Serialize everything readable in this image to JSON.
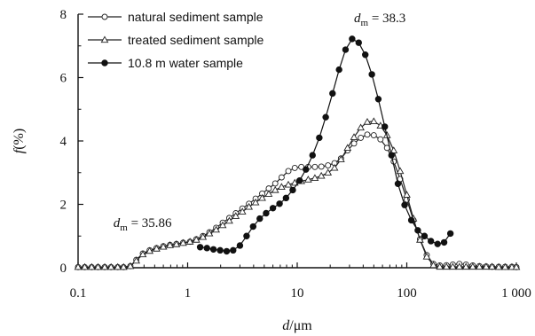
{
  "chart_data": {
    "type": "line",
    "xscale": "log",
    "xlim": [
      0.1,
      1000
    ],
    "ylim": [
      0,
      8
    ],
    "xlabel": {
      "var": "d",
      "unit": "μm"
    },
    "ylabel": {
      "var": "f",
      "unit": "(%)"
    },
    "xticks": [
      {
        "value": 0.1,
        "label": "0.1"
      },
      {
        "value": 1,
        "label": "1"
      },
      {
        "value": 10,
        "label": "10"
      },
      {
        "value": 100,
        "label": "100"
      },
      {
        "value": 1000,
        "label": "1 000"
      }
    ],
    "yticks": [
      {
        "value": 0,
        "label": "0"
      },
      {
        "value": 2,
        "label": "2"
      },
      {
        "value": 4,
        "label": "4"
      },
      {
        "value": 6,
        "label": "6"
      },
      {
        "value": 8,
        "label": "8"
      }
    ],
    "legend_position": "top-left",
    "grid": false,
    "annotations": [
      {
        "prefix": "d",
        "sub": "m",
        "text": " = 38.3",
        "x": 33,
        "y": 7.75
      },
      {
        "prefix": "d",
        "sub": "m",
        "text": " = 35.86",
        "x": 0.21,
        "y": 1.28
      }
    ],
    "series": [
      {
        "name": "natural sediment sample",
        "marker": "open-circle",
        "color": "#222222",
        "points": [
          [
            0.1,
            0.02
          ],
          [
            0.115,
            0.02
          ],
          [
            0.133,
            0.02
          ],
          [
            0.152,
            0.02
          ],
          [
            0.175,
            0.02
          ],
          [
            0.2,
            0.02
          ],
          [
            0.23,
            0.02
          ],
          [
            0.26,
            0.02
          ],
          [
            0.3,
            0.05
          ],
          [
            0.34,
            0.25
          ],
          [
            0.39,
            0.45
          ],
          [
            0.45,
            0.55
          ],
          [
            0.52,
            0.62
          ],
          [
            0.6,
            0.68
          ],
          [
            0.69,
            0.72
          ],
          [
            0.79,
            0.75
          ],
          [
            0.91,
            0.79
          ],
          [
            1.05,
            0.82
          ],
          [
            1.2,
            0.9
          ],
          [
            1.38,
            1.0
          ],
          [
            1.58,
            1.12
          ],
          [
            1.82,
            1.26
          ],
          [
            2.09,
            1.42
          ],
          [
            2.4,
            1.57
          ],
          [
            2.75,
            1.72
          ],
          [
            3.16,
            1.87
          ],
          [
            3.63,
            2.02
          ],
          [
            4.17,
            2.18
          ],
          [
            4.79,
            2.34
          ],
          [
            5.5,
            2.5
          ],
          [
            6.3,
            2.66
          ],
          [
            7.2,
            2.85
          ],
          [
            8.3,
            3.05
          ],
          [
            9.5,
            3.15
          ],
          [
            10.9,
            3.18
          ],
          [
            12.6,
            3.18
          ],
          [
            14.5,
            3.18
          ],
          [
            16.6,
            3.19
          ],
          [
            19.1,
            3.23
          ],
          [
            21.9,
            3.3
          ],
          [
            25.1,
            3.45
          ],
          [
            28.8,
            3.7
          ],
          [
            33,
            3.92
          ],
          [
            38,
            4.1
          ],
          [
            43.6,
            4.2
          ],
          [
            50,
            4.18
          ],
          [
            57.5,
            4.05
          ],
          [
            66,
            3.78
          ],
          [
            76,
            3.35
          ],
          [
            87,
            2.8
          ],
          [
            100,
            2.15
          ],
          [
            115,
            1.5
          ],
          [
            132,
            0.9
          ],
          [
            152,
            0.4
          ],
          [
            175,
            0.12
          ],
          [
            200,
            0.07
          ],
          [
            230,
            0.08
          ],
          [
            263,
            0.1
          ],
          [
            302,
            0.12
          ],
          [
            347,
            0.1
          ],
          [
            400,
            0.07
          ],
          [
            460,
            0.05
          ],
          [
            530,
            0.04
          ],
          [
            600,
            0.03
          ],
          [
            690,
            0.03
          ],
          [
            790,
            0.03
          ],
          [
            910,
            0.03
          ],
          [
            1000,
            0.02
          ]
        ]
      },
      {
        "name": "treated sediment sample",
        "marker": "open-triangle",
        "color": "#222222",
        "points": [
          [
            0.1,
            0.02
          ],
          [
            0.115,
            0.02
          ],
          [
            0.133,
            0.02
          ],
          [
            0.152,
            0.02
          ],
          [
            0.175,
            0.02
          ],
          [
            0.2,
            0.02
          ],
          [
            0.23,
            0.02
          ],
          [
            0.26,
            0.02
          ],
          [
            0.3,
            0.05
          ],
          [
            0.34,
            0.22
          ],
          [
            0.39,
            0.42
          ],
          [
            0.45,
            0.53
          ],
          [
            0.52,
            0.6
          ],
          [
            0.6,
            0.66
          ],
          [
            0.69,
            0.71
          ],
          [
            0.79,
            0.74
          ],
          [
            0.91,
            0.78
          ],
          [
            1.05,
            0.82
          ],
          [
            1.2,
            0.88
          ],
          [
            1.38,
            0.97
          ],
          [
            1.58,
            1.08
          ],
          [
            1.82,
            1.2
          ],
          [
            2.09,
            1.34
          ],
          [
            2.4,
            1.48
          ],
          [
            2.75,
            1.63
          ],
          [
            3.16,
            1.77
          ],
          [
            3.63,
            1.92
          ],
          [
            4.17,
            2.06
          ],
          [
            4.79,
            2.2
          ],
          [
            5.5,
            2.33
          ],
          [
            6.3,
            2.45
          ],
          [
            7.2,
            2.55
          ],
          [
            8.3,
            2.62
          ],
          [
            9.5,
            2.68
          ],
          [
            10.9,
            2.73
          ],
          [
            12.6,
            2.78
          ],
          [
            14.5,
            2.83
          ],
          [
            16.6,
            2.9
          ],
          [
            19.1,
            3.0
          ],
          [
            21.9,
            3.15
          ],
          [
            25.1,
            3.42
          ],
          [
            28.8,
            3.78
          ],
          [
            33,
            4.12
          ],
          [
            38,
            4.42
          ],
          [
            43.6,
            4.6
          ],
          [
            50,
            4.62
          ],
          [
            57.5,
            4.48
          ],
          [
            66,
            4.18
          ],
          [
            76,
            3.7
          ],
          [
            87,
            3.05
          ],
          [
            100,
            2.3
          ],
          [
            115,
            1.55
          ],
          [
            132,
            0.88
          ],
          [
            152,
            0.35
          ],
          [
            175,
            0.08
          ],
          [
            200,
            0.03
          ],
          [
            230,
            0.03
          ],
          [
            263,
            0.03
          ],
          [
            302,
            0.03
          ],
          [
            347,
            0.03
          ],
          [
            400,
            0.03
          ],
          [
            460,
            0.03
          ],
          [
            530,
            0.03
          ],
          [
            600,
            0.03
          ],
          [
            690,
            0.02
          ],
          [
            790,
            0.02
          ],
          [
            910,
            0.02
          ],
          [
            1000,
            0.02
          ]
        ]
      },
      {
        "name": "10.8 m water sample",
        "marker": "filled-circle",
        "color": "#111111",
        "points": [
          [
            1.3,
            0.65
          ],
          [
            1.5,
            0.62
          ],
          [
            1.72,
            0.58
          ],
          [
            1.98,
            0.55
          ],
          [
            2.27,
            0.52
          ],
          [
            2.6,
            0.55
          ],
          [
            3.0,
            0.7
          ],
          [
            3.45,
            1.0
          ],
          [
            3.96,
            1.3
          ],
          [
            4.55,
            1.55
          ],
          [
            5.2,
            1.72
          ],
          [
            6.0,
            1.88
          ],
          [
            6.9,
            2.02
          ],
          [
            7.9,
            2.2
          ],
          [
            9.1,
            2.45
          ],
          [
            10.5,
            2.75
          ],
          [
            12.0,
            3.1
          ],
          [
            13.8,
            3.55
          ],
          [
            15.9,
            4.1
          ],
          [
            18.2,
            4.75
          ],
          [
            21.0,
            5.5
          ],
          [
            24.1,
            6.25
          ],
          [
            27.6,
            6.88
          ],
          [
            31.7,
            7.22
          ],
          [
            36.4,
            7.1
          ],
          [
            41.8,
            6.72
          ],
          [
            48,
            6.1
          ],
          [
            55,
            5.32
          ],
          [
            63,
            4.45
          ],
          [
            72.5,
            3.55
          ],
          [
            83,
            2.65
          ],
          [
            95.5,
            1.98
          ],
          [
            110,
            1.5
          ],
          [
            126,
            1.18
          ],
          [
            145,
            1.0
          ],
          [
            166,
            0.84
          ],
          [
            191,
            0.75
          ],
          [
            219,
            0.8
          ],
          [
            250,
            1.08
          ]
        ]
      }
    ]
  }
}
